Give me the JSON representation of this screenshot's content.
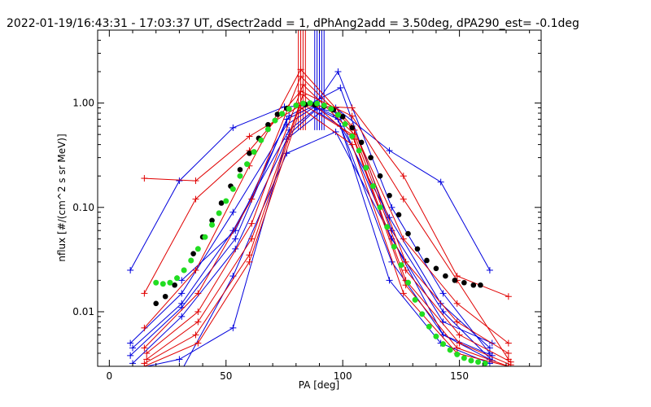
{
  "chart_data": {
    "type": "line",
    "title": "2022-01-19/16:43:31 - 17:03:37 UT, dSectr2add = 1, dPhAng2add = 3.50deg, dPA290_est=  -0.1deg",
    "xlabel": "PA [deg]",
    "ylabel": "nflux [#/(cm^2 s sr MeV)]",
    "xlim": [
      -5,
      185
    ],
    "ylim": [
      0.003,
      5.0
    ],
    "yscale": "log",
    "grid": false,
    "xticks": [
      0,
      50,
      100,
      150
    ],
    "xtick_labels": [
      "0",
      "50",
      "100",
      "150"
    ],
    "yticks": [
      0.01,
      0.1,
      1.0
    ],
    "ytick_labels": [
      "0.01",
      "0.10",
      "1.00"
    ],
    "colors": {
      "red": "#e00000",
      "blue": "#0000dd",
      "black": "#000000",
      "green": "#22dd22"
    },
    "series": [
      {
        "color": "blue",
        "style": "line-plus",
        "x": [
          9,
          30,
          53,
          75,
          88,
          97,
          120,
          142,
          163
        ],
        "y": [
          0.025,
          0.18,
          0.58,
          0.92,
          0.95,
          0.9,
          0.35,
          0.175,
          0.025
        ]
      },
      {
        "color": "blue",
        "style": "line-plus",
        "x": [
          9,
          31,
          53,
          76,
          88,
          97,
          120,
          142,
          163
        ],
        "y": [
          0.005,
          0.015,
          0.09,
          0.62,
          0.92,
          0.75,
          0.08,
          0.012,
          0.0045
        ]
      },
      {
        "color": "blue",
        "style": "line-plus",
        "x": [
          10,
          31,
          53,
          77,
          89,
          98,
          121,
          143,
          164
        ],
        "y": [
          0.0045,
          0.012,
          0.06,
          0.55,
          0.9,
          0.8,
          0.05,
          0.008,
          0.005
        ]
      },
      {
        "color": "blue",
        "style": "line-plus",
        "x": [
          10,
          31,
          54,
          77,
          89,
          98,
          121,
          143,
          164
        ],
        "y": [
          0.0032,
          0.009,
          0.04,
          0.5,
          0.88,
          0.7,
          0.03,
          0.006,
          0.0038
        ]
      },
      {
        "color": "blue",
        "style": "line-plus",
        "x": [
          10,
          30,
          53,
          76,
          90,
          99,
          120,
          142,
          163
        ],
        "y": [
          0.0028,
          0.0035,
          0.007,
          0.45,
          0.8,
          0.6,
          0.02,
          0.005,
          0.0032
        ]
      },
      {
        "color": "blue",
        "style": "line-plus",
        "x": [
          30,
          53,
          76,
          97,
          143,
          163
        ],
        "y": [
          0.0025,
          0.022,
          0.33,
          0.53,
          0.006,
          0.0035
        ]
      },
      {
        "color": "blue",
        "style": "line-plus",
        "x": [
          9,
          31,
          54,
          76,
          88,
          98,
          121,
          143,
          163
        ],
        "y": [
          0.0038,
          0.011,
          0.05,
          0.7,
          0.95,
          2.0,
          0.1,
          0.015,
          0.004
        ]
      },
      {
        "color": "blue",
        "style": "line-plus",
        "x": [
          31,
          54,
          77,
          90,
          99,
          121,
          143,
          164
        ],
        "y": [
          0.02,
          0.06,
          0.75,
          1.1,
          1.4,
          0.06,
          0.01,
          0.0034
        ]
      },
      {
        "color": "red",
        "style": "line-plus",
        "x": [
          15,
          37,
          60,
          82,
          104,
          126,
          149,
          171
        ],
        "y": [
          0.19,
          0.18,
          0.48,
          0.95,
          0.9,
          0.2,
          0.022,
          0.014
        ]
      },
      {
        "color": "red",
        "style": "line-plus",
        "x": [
          15,
          37,
          60,
          82,
          104,
          126,
          149,
          171
        ],
        "y": [
          0.015,
          0.12,
          0.35,
          1.3,
          0.75,
          0.12,
          0.02,
          0.0035
        ]
      },
      {
        "color": "red",
        "style": "line-plus",
        "x": [
          15,
          37,
          60,
          82,
          104,
          126,
          149,
          171
        ],
        "y": [
          0.007,
          0.025,
          0.25,
          2.1,
          0.6,
          0.05,
          0.012,
          0.005
        ]
      },
      {
        "color": "red",
        "style": "line-plus",
        "x": [
          15,
          38,
          61,
          82,
          105,
          127,
          149,
          171
        ],
        "y": [
          0.0045,
          0.015,
          0.12,
          1.8,
          0.55,
          0.03,
          0.008,
          0.004
        ]
      },
      {
        "color": "red",
        "style": "line-plus",
        "x": [
          16,
          38,
          61,
          83,
          105,
          127,
          150,
          172
        ],
        "y": [
          0.004,
          0.01,
          0.07,
          1.5,
          0.5,
          0.025,
          0.006,
          0.0033
        ]
      },
      {
        "color": "red",
        "style": "line-plus",
        "x": [
          16,
          38,
          61,
          83,
          105,
          127,
          150,
          172
        ],
        "y": [
          0.0035,
          0.008,
          0.05,
          1.2,
          0.45,
          0.02,
          0.005,
          0.0031
        ]
      },
      {
        "color": "red",
        "style": "line-plus",
        "x": [
          15,
          37,
          60,
          82,
          104,
          127,
          149,
          171
        ],
        "y": [
          0.0032,
          0.006,
          0.035,
          1.0,
          0.5,
          0.018,
          0.0045,
          0.003
        ]
      },
      {
        "color": "red",
        "style": "line-plus",
        "x": [
          15,
          38,
          60,
          82,
          104,
          126,
          149,
          171
        ],
        "y": [
          0.003,
          0.005,
          0.03,
          0.9,
          0.4,
          0.015,
          0.004,
          0.003
        ]
      }
    ],
    "black_points": {
      "x": [
        20,
        24,
        28,
        32,
        36,
        40,
        44,
        48,
        52,
        56,
        60,
        64,
        68,
        72,
        76,
        80,
        84,
        88,
        92,
        96,
        100,
        104,
        108,
        112,
        116,
        120,
        124,
        128,
        132,
        136,
        140,
        144,
        148,
        152,
        156,
        159
      ],
      "y": [
        0.012,
        0.014,
        0.018,
        0.025,
        0.036,
        0.052,
        0.075,
        0.11,
        0.16,
        0.23,
        0.33,
        0.46,
        0.62,
        0.78,
        0.89,
        0.95,
        0.97,
        0.96,
        0.93,
        0.86,
        0.74,
        0.58,
        0.42,
        0.3,
        0.2,
        0.13,
        0.085,
        0.056,
        0.04,
        0.031,
        0.026,
        0.022,
        0.02,
        0.019,
        0.018,
        0.018
      ]
    },
    "green_points": {
      "x": [
        20,
        23,
        26,
        29,
        32,
        35,
        38,
        41,
        44,
        47,
        50,
        53,
        56,
        59,
        62,
        65,
        68,
        71,
        74,
        77,
        80,
        83,
        86,
        89,
        92,
        95,
        98,
        101,
        104,
        107,
        110,
        113,
        116,
        119,
        122,
        125,
        128,
        131,
        134,
        137,
        140,
        143,
        146,
        149,
        152,
        155,
        158,
        161
      ],
      "y": [
        0.019,
        0.0185,
        0.019,
        0.021,
        0.025,
        0.031,
        0.04,
        0.052,
        0.068,
        0.088,
        0.115,
        0.15,
        0.2,
        0.26,
        0.34,
        0.44,
        0.56,
        0.68,
        0.79,
        0.88,
        0.95,
        0.99,
        1.0,
        0.99,
        0.95,
        0.88,
        0.77,
        0.63,
        0.48,
        0.35,
        0.24,
        0.16,
        0.1,
        0.065,
        0.042,
        0.028,
        0.019,
        0.013,
        0.0095,
        0.0072,
        0.0058,
        0.0049,
        0.0043,
        0.0039,
        0.0036,
        0.0034,
        0.0033,
        0.0032
      ]
    },
    "spikes": [
      {
        "color": "red",
        "x": [
          81,
          82,
          83,
          84
        ]
      },
      {
        "color": "blue",
        "x": [
          88,
          89,
          90,
          91,
          92
        ]
      }
    ]
  }
}
